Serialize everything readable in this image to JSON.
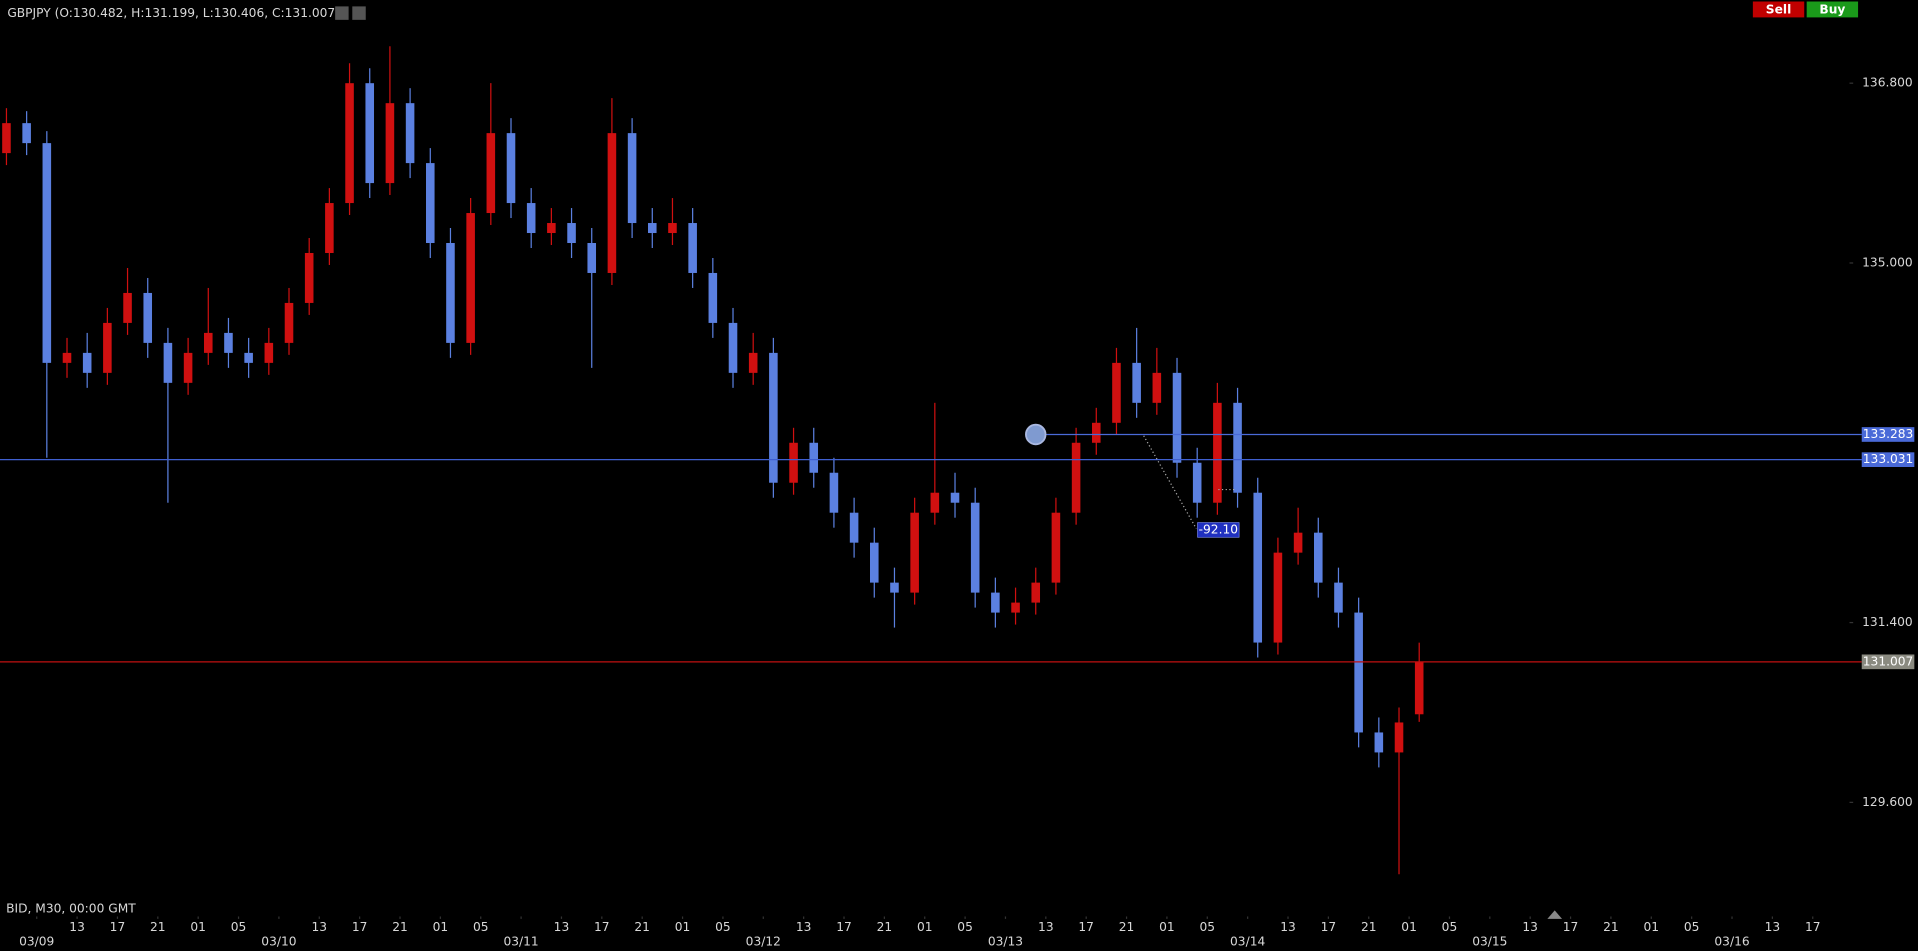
{
  "chart_data": {
    "type": "candlestick",
    "title": "GBPJPY (O:130.482, H:131.199, L:130.406, C:131.007)",
    "footer": "BID, M30, 00:00 GMT",
    "buttons": [
      {
        "label": "Sell",
        "color": "#c00000"
      },
      {
        "label": "Buy",
        "color": "#1a9a1a"
      }
    ],
    "up_color": "#d01010",
    "down_color": "#5b80e0",
    "grid": false,
    "x": [
      6,
      8,
      10,
      12,
      14,
      16,
      18,
      20,
      22,
      24,
      26,
      28,
      30,
      32,
      34,
      36,
      38,
      40,
      42,
      44,
      46,
      48,
      50,
      52,
      54,
      56,
      58,
      60,
      62,
      64,
      66,
      68,
      70,
      72,
      74,
      76,
      78,
      80,
      82,
      84,
      86,
      88,
      90,
      92,
      94,
      96,
      98,
      100,
      102,
      104,
      106,
      108,
      110,
      112,
      114,
      116,
      118,
      120,
      122,
      124,
      126,
      128,
      130,
      132,
      134,
      136,
      138,
      140,
      142,
      144,
      146
    ],
    "open": [
      136.1,
      136.4,
      136.2,
      134.0,
      134.1,
      133.9,
      134.4,
      134.7,
      134.2,
      133.8,
      134.1,
      134.3,
      134.1,
      134.0,
      134.2,
      134.6,
      135.1,
      135.6,
      136.8,
      135.8,
      136.6,
      136.0,
      135.2,
      134.2,
      135.5,
      136.3,
      135.6,
      135.3,
      135.4,
      135.2,
      134.9,
      136.3,
      135.4,
      135.3,
      135.4,
      134.9,
      134.4,
      133.9,
      134.1,
      132.8,
      133.2,
      132.9,
      132.5,
      132.2,
      131.8,
      131.7,
      132.5,
      132.7,
      132.6,
      131.7,
      131.5,
      131.6,
      131.8,
      132.5,
      133.2,
      133.4,
      134.0,
      133.6,
      133.9,
      133.0,
      132.6,
      133.6,
      132.7,
      131.2,
      132.1,
      132.3,
      131.8,
      131.5,
      130.3,
      130.1,
      130.482
    ],
    "high": [
      136.55,
      136.52,
      136.32,
      134.25,
      134.3,
      134.55,
      134.95,
      134.85,
      134.35,
      134.25,
      134.75,
      134.45,
      134.25,
      134.35,
      134.75,
      135.25,
      135.75,
      137.0,
      136.95,
      137.17,
      136.75,
      136.15,
      135.35,
      135.65,
      136.8,
      136.45,
      135.75,
      135.55,
      135.55,
      135.35,
      136.65,
      136.45,
      135.55,
      135.65,
      135.55,
      135.05,
      134.55,
      134.3,
      134.25,
      133.35,
      133.35,
      133.05,
      132.65,
      132.35,
      131.95,
      132.65,
      133.6,
      132.9,
      132.75,
      131.85,
      131.75,
      131.95,
      132.65,
      133.35,
      133.55,
      134.15,
      134.35,
      134.15,
      134.05,
      133.15,
      133.8,
      133.75,
      132.85,
      132.25,
      132.55,
      132.45,
      131.95,
      131.65,
      130.45,
      130.55,
      131.199
    ],
    "low": [
      135.98,
      136.08,
      133.05,
      133.85,
      133.75,
      133.78,
      134.28,
      134.05,
      132.6,
      133.68,
      133.98,
      133.95,
      133.85,
      133.88,
      134.08,
      134.48,
      134.98,
      135.48,
      135.65,
      135.68,
      135.85,
      135.05,
      134.05,
      134.08,
      135.38,
      135.45,
      135.15,
      135.18,
      135.05,
      133.95,
      134.78,
      135.25,
      135.15,
      135.18,
      134.75,
      134.25,
      133.75,
      133.78,
      132.65,
      132.68,
      132.75,
      132.35,
      132.05,
      131.65,
      131.35,
      131.58,
      132.38,
      132.45,
      131.55,
      131.35,
      131.38,
      131.48,
      131.68,
      132.38,
      133.08,
      133.28,
      133.45,
      133.48,
      132.85,
      132.45,
      132.48,
      132.55,
      131.05,
      131.08,
      131.98,
      131.65,
      131.35,
      130.15,
      129.95,
      128.88,
      130.406
    ],
    "close": [
      136.4,
      136.2,
      134.0,
      134.1,
      133.9,
      134.4,
      134.7,
      134.2,
      133.8,
      134.1,
      134.3,
      134.1,
      134.0,
      134.2,
      134.6,
      135.1,
      135.6,
      136.8,
      135.8,
      136.6,
      136.0,
      135.2,
      134.2,
      135.5,
      136.3,
      135.6,
      135.3,
      135.4,
      135.2,
      134.9,
      136.3,
      135.4,
      135.3,
      135.4,
      134.9,
      134.4,
      133.9,
      134.1,
      132.8,
      133.2,
      132.9,
      132.5,
      132.2,
      131.8,
      131.7,
      132.5,
      132.7,
      132.6,
      131.7,
      131.5,
      131.6,
      131.8,
      132.5,
      133.2,
      133.4,
      134.0,
      133.6,
      133.9,
      133.0,
      132.6,
      133.6,
      132.7,
      131.2,
      132.1,
      132.3,
      131.8,
      131.5,
      130.3,
      130.1,
      130.4,
      131.007
    ],
    "xlim": [
      5.36,
      188.4
    ],
    "ylim": [
      128.47,
      137.63
    ],
    "yticks": [
      {
        "value": 136.8,
        "label": "136.800"
      },
      {
        "value": 135,
        "label": "135.000"
      },
      {
        "value": 131.4,
        "label": "131.400"
      },
      {
        "value": 129.6,
        "label": "129.600"
      }
    ],
    "xticks": [
      {
        "value": 9,
        "label": "03/09"
      },
      {
        "value": 13,
        "label": "13"
      },
      {
        "value": 17,
        "label": "17"
      },
      {
        "value": 21,
        "label": "21"
      },
      {
        "value": 25,
        "label": "01"
      },
      {
        "value": 29,
        "label": "05"
      },
      {
        "value": 33,
        "label": "03/10"
      },
      {
        "value": 37,
        "label": "13"
      },
      {
        "value": 41,
        "label": "17"
      },
      {
        "value": 45,
        "label": "21"
      },
      {
        "value": 49,
        "label": "01"
      },
      {
        "value": 53,
        "label": "05"
      },
      {
        "value": 57,
        "label": "03/11"
      },
      {
        "value": 61,
        "label": "13"
      },
      {
        "value": 65,
        "label": "17"
      },
      {
        "value": 69,
        "label": "21"
      },
      {
        "value": 73,
        "label": "01"
      },
      {
        "value": 77,
        "label": "05"
      },
      {
        "value": 81,
        "label": "03/12"
      },
      {
        "value": 85,
        "label": "13"
      },
      {
        "value": 89,
        "label": "17"
      },
      {
        "value": 93,
        "label": "21"
      },
      {
        "value": 97,
        "label": "01"
      },
      {
        "value": 101,
        "label": "05"
      },
      {
        "value": 105,
        "label": "03/13"
      },
      {
        "value": 109,
        "label": "13"
      },
      {
        "value": 113,
        "label": "17"
      },
      {
        "value": 117,
        "label": "21"
      },
      {
        "value": 121,
        "label": "01"
      },
      {
        "value": 125,
        "label": "05"
      },
      {
        "value": 129,
        "label": "03/14"
      },
      {
        "value": 133,
        "label": "13"
      },
      {
        "value": 137,
        "label": "17"
      },
      {
        "value": 141,
        "label": "21"
      },
      {
        "value": 145,
        "label": "01"
      },
      {
        "value": 149,
        "label": "05"
      },
      {
        "value": 153,
        "label": "03/15"
      },
      {
        "value": 157,
        "label": "13"
      },
      {
        "value": 161,
        "label": "17"
      },
      {
        "value": 165,
        "label": "21"
      },
      {
        "value": 169,
        "label": "01"
      },
      {
        "value": 173,
        "label": "05"
      },
      {
        "value": 177,
        "label": "03/16"
      },
      {
        "value": 181,
        "label": "13"
      },
      {
        "value": 185,
        "label": "17"
      }
    ],
    "price_lines": [
      {
        "value": 133.283,
        "color": "#4a6ad8",
        "label_color": "#4a6ad8",
        "start": 108
      },
      {
        "value": 133.031,
        "color": "#3f5fd0",
        "label_color": "#4a6ad8"
      },
      {
        "value": 131.007,
        "color": "#c01010",
        "label_color": "#8a8a80"
      }
    ],
    "annotations": [
      "-92.10"
    ]
  }
}
